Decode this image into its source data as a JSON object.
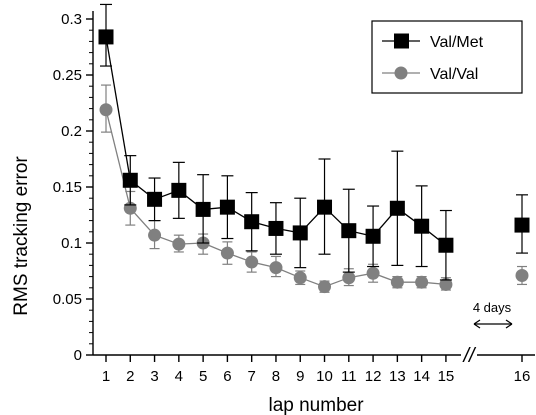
{
  "chart_data": {
    "type": "line",
    "xlabel": "lap number",
    "ylabel": "RMS tracking error",
    "ylim": [
      0,
      0.3
    ],
    "yticks": [
      "0",
      "0.05",
      "0.1",
      "0.15",
      "0.2",
      "0.25",
      "0.3"
    ],
    "categories": [
      "1",
      "2",
      "3",
      "4",
      "5",
      "6",
      "7",
      "8",
      "9",
      "10",
      "11",
      "12",
      "13",
      "14",
      "15",
      "16"
    ],
    "axis_break": "//",
    "break_annotation": "4 days",
    "legend_position": "top-right",
    "grid": false,
    "series": [
      {
        "name": "Val/Met",
        "marker": "square",
        "color": "#000000",
        "values": [
          0.284,
          0.156,
          0.139,
          0.147,
          0.13,
          0.132,
          0.119,
          0.113,
          0.109,
          0.132,
          0.111,
          0.106,
          0.131,
          0.115,
          0.098,
          0.116
        ],
        "error_upper": [
          0.313,
          0.178,
          0.158,
          0.172,
          0.161,
          0.16,
          0.145,
          0.136,
          0.14,
          0.175,
          0.148,
          0.133,
          0.182,
          0.151,
          0.129,
          0.143
        ],
        "error_lower": [
          0.258,
          0.134,
          0.12,
          0.122,
          0.1,
          0.104,
          0.093,
          0.09,
          0.078,
          0.09,
          0.074,
          0.079,
          0.08,
          0.079,
          0.067,
          0.091
        ]
      },
      {
        "name": "Val/Val",
        "marker": "circle",
        "color": "#808080",
        "values": [
          0.219,
          0.131,
          0.107,
          0.099,
          0.1,
          0.091,
          0.083,
          0.078,
          0.069,
          0.061,
          0.069,
          0.073,
          0.065,
          0.065,
          0.063,
          0.071
        ],
        "error_upper": [
          0.241,
          0.146,
          0.12,
          0.107,
          0.108,
          0.101,
          0.092,
          0.088,
          0.075,
          0.066,
          0.077,
          0.081,
          0.07,
          0.07,
          0.069,
          0.079
        ],
        "error_lower": [
          0.199,
          0.116,
          0.095,
          0.092,
          0.09,
          0.081,
          0.074,
          0.07,
          0.063,
          0.056,
          0.062,
          0.065,
          0.06,
          0.06,
          0.058,
          0.063
        ]
      }
    ]
  }
}
